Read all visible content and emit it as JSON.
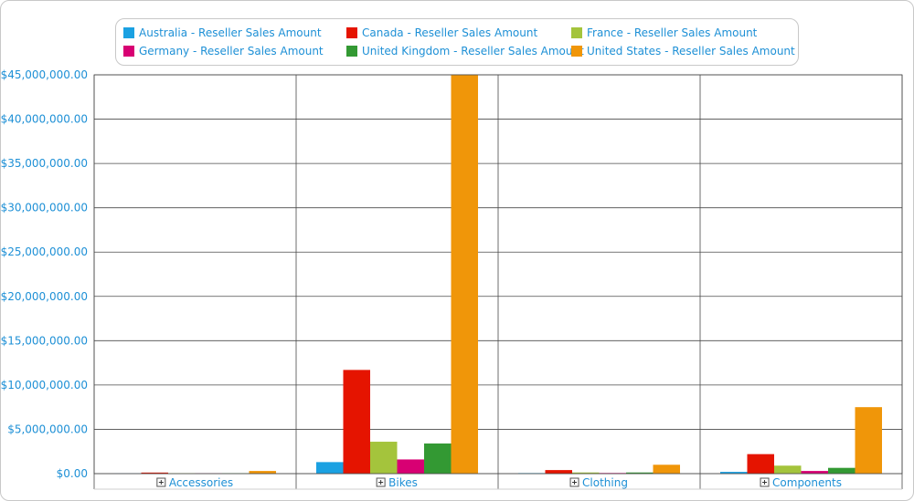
{
  "chart_data": {
    "type": "bar",
    "title": "",
    "xlabel": "",
    "ylabel": "",
    "ylim": [
      0,
      45000000
    ],
    "y_ticks": [
      "$0.00",
      "$5,000,000.00",
      "$10,000,000.00",
      "$15,000,000.00",
      "$20,000,000.00",
      "$25,000,000.00",
      "$30,000,000.00",
      "$35,000,000.00",
      "$40,000,000.00",
      "$45,000,000.00"
    ],
    "y_tick_values": [
      0,
      5000000,
      10000000,
      15000000,
      20000000,
      25000000,
      30000000,
      35000000,
      40000000,
      45000000
    ],
    "categories": [
      "Accessories",
      "Bikes",
      "Clothing",
      "Components"
    ],
    "grid": true,
    "legend_position": "top",
    "series": [
      {
        "name": "Australia - Reseller Sales Amount",
        "color": "#1ba1e2",
        "values": [
          20000,
          1300000,
          60000,
          200000
        ]
      },
      {
        "name": "Canada - Reseller Sales Amount",
        "color": "#e51400",
        "values": [
          120000,
          11700000,
          400000,
          2200000
        ]
      },
      {
        "name": "France - Reseller Sales Amount",
        "color": "#a4c43c",
        "values": [
          40000,
          3600000,
          130000,
          900000
        ]
      },
      {
        "name": "Germany - Reseller Sales Amount",
        "color": "#d80073",
        "values": [
          20000,
          1600000,
          70000,
          300000
        ]
      },
      {
        "name": "United Kingdom - Reseller Sales Amount",
        "color": "#339933",
        "values": [
          40000,
          3400000,
          130000,
          650000
        ]
      },
      {
        "name": "United States - Reseller Sales Amount",
        "color": "#f09609",
        "values": [
          300000,
          45000000,
          1000000,
          7500000
        ]
      }
    ]
  }
}
